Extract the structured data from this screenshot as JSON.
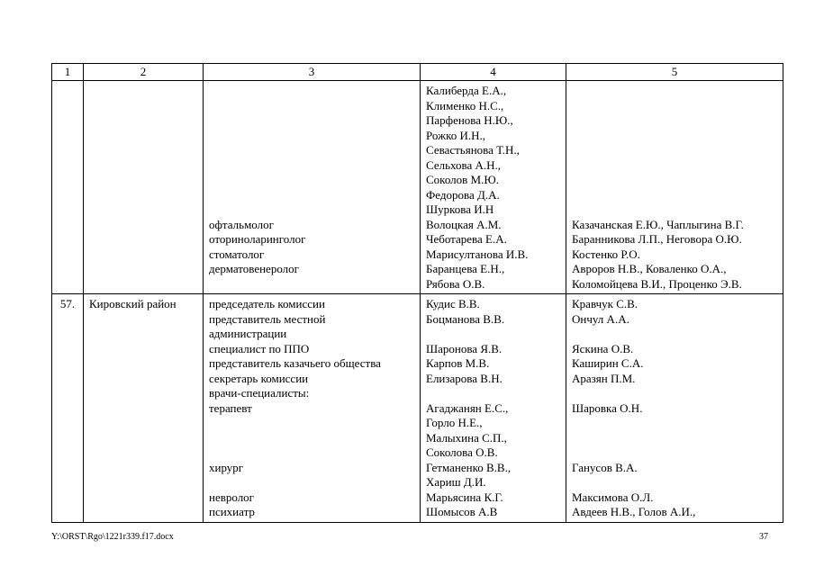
{
  "document": {
    "footer_path": "Y:\\ORST\\Rgo\\1221r339.f17.docx",
    "page_number": "37"
  },
  "table": {
    "headers": [
      "1",
      "2",
      "3",
      "4",
      "5"
    ],
    "rows": [
      {
        "num": "",
        "district": "",
        "col3": [
          "",
          "",
          "",
          "",
          "",
          "",
          "",
          "",
          "",
          "офтальмолог",
          "оториноларинголог",
          "стоматолог",
          "дерматовенеролог"
        ],
        "col4": [
          "Калиберда Е.А.,",
          "Клименко Н.С.,",
          "Парфенова Н.Ю.,",
          "Рожко И.Н.,",
          "Севастьянова Т.Н.,",
          "Сельхова А.Н.,",
          "Соколов М.Ю.",
          "Федорова Д.А.",
          "Шуркова И.Н",
          "Волоцкая А.М.",
          "Чеботарева Е.А.",
          "Марисултанова И.В.",
          "Баранцева Е.Н.,",
          "Рябова О.В."
        ],
        "col5": [
          "",
          "",
          "",
          "",
          "",
          "",
          "",
          "",
          "",
          "Казачанская Е.Ю., Чаплыгина В.Г.",
          "Баранникова Л.П., Неговора О.Ю.",
          "Костенко Р.О.",
          "Авроров Н.В., Коваленко О.А.,",
          "Коломойцева В.И., Проценко Э.В."
        ]
      },
      {
        "num": "57.",
        "district": "Кировский район",
        "col3": [
          "председатель комиссии",
          "представитель местной",
          "администрации",
          "специалист по ППО",
          "представитель казачьего общества",
          "секретарь комиссии",
          "врачи-специалисты:",
          "терапевт",
          "",
          "",
          "",
          "хирург",
          "",
          "невролог",
          "психиатр"
        ],
        "col4": [
          "Кудис В.В.",
          "Боцманова В.В.",
          "",
          "Шаронова Я.В.",
          "Карпов М.В.",
          "Елизарова В.Н.",
          "",
          "Агаджанян Е.С.,",
          "Горло Н.Е.,",
          "Малыхина С.П.,",
          "Соколова О.В.",
          "Гетманенко В.В.,",
          "Хариш Д.И.",
          "Марьясина К.Г.",
          "Шомысов А.В"
        ],
        "col5": [
          "Кравчук С.В.",
          "Ончул А.А.",
          "",
          "Яскина О.В.",
          "Каширин С.А.",
          "Аразян П.М.",
          "",
          "Шаровка О.Н.",
          "",
          "",
          "",
          "Ганусов В.А.",
          "",
          "Максимова О.Л.",
          "Авдеев Н.В., Голов А.И.,"
        ]
      }
    ]
  }
}
